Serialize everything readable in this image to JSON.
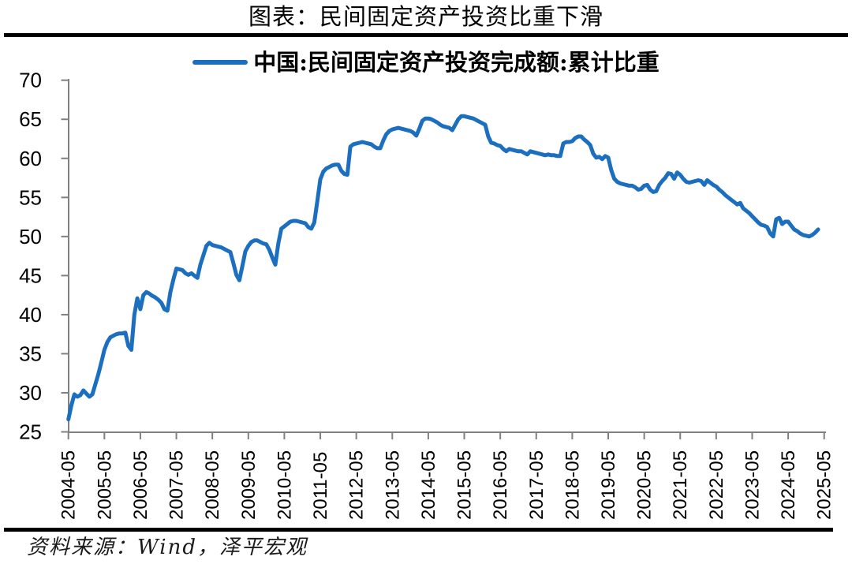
{
  "page": {
    "title": "图表：民间固定资产投资比重下滑",
    "source_note": "资料来源：Wind，泽平宏观"
  },
  "legend": {
    "series_label": "中国:民间固定资产投资完成额:累计比重",
    "line_color": "#1B6FBE"
  },
  "chart_data": {
    "type": "line",
    "title": "图表：民间固定资产投资比重下滑",
    "series_name": "中国:民间固定资产投资完成额:累计比重",
    "unit": "%",
    "frequency": "monthly",
    "x_monthly_start": "2004-05",
    "x_monthly_end": "2025-03",
    "x_tick_labels": [
      "2004-05",
      "2005-05",
      "2006-05",
      "2007-05",
      "2008-05",
      "2009-05",
      "2010-05",
      "2011-05",
      "2012-05",
      "2013-05",
      "2014-05",
      "2015-05",
      "2016-05",
      "2017-05",
      "2018-05",
      "2019-05",
      "2020-05",
      "2021-05",
      "2022-05",
      "2023-05",
      "2024-05",
      "2025-05"
    ],
    "y_ticks": [
      25,
      30,
      35,
      40,
      45,
      50,
      55,
      60,
      65,
      70
    ],
    "ylim": [
      25,
      70
    ],
    "grid": false,
    "legend_position": "top-center",
    "line_color": "#1B6FBE",
    "axis_color": "#808080",
    "values": [
      26.6,
      28.4,
      29.8,
      29.5,
      29.7,
      30.3,
      29.9,
      29.5,
      29.8,
      31.1,
      32.4,
      33.9,
      35.5,
      36.5,
      37.1,
      37.3,
      37.5,
      37.6,
      37.6,
      37.7,
      36.0,
      35.5,
      40.0,
      42.1,
      40.7,
      42.5,
      42.9,
      42.7,
      42.4,
      42.2,
      41.9,
      41.5,
      40.7,
      40.5,
      42.9,
      44.5,
      45.9,
      45.8,
      45.7,
      45.3,
      45.1,
      45.3,
      45.0,
      44.7,
      46.4,
      47.6,
      48.8,
      49.2,
      48.9,
      48.8,
      48.7,
      48.6,
      48.4,
      48.2,
      48.0,
      46.6,
      45.1,
      44.4,
      46.2,
      48.1,
      48.8,
      49.3,
      49.5,
      49.5,
      49.3,
      49.1,
      49.0,
      48.3,
      47.3,
      46.4,
      49.1,
      51.0,
      51.3,
      51.6,
      51.9,
      52.0,
      52.0,
      51.9,
      51.8,
      51.7,
      51.2,
      51.0,
      51.8,
      54.5,
      57.3,
      58.3,
      58.7,
      58.9,
      59.1,
      59.2,
      59.2,
      58.4,
      58.0,
      57.9,
      61.5,
      61.8,
      61.9,
      62.0,
      62.1,
      62.0,
      61.9,
      61.8,
      61.5,
      61.3,
      61.3,
      62.3,
      63.1,
      63.5,
      63.7,
      63.8,
      63.9,
      63.8,
      63.7,
      63.6,
      63.5,
      63.3,
      62.9,
      63.8,
      64.8,
      65.1,
      65.1,
      65.0,
      64.8,
      64.6,
      64.3,
      64.1,
      64.0,
      63.9,
      63.6,
      64.3,
      65.0,
      65.4,
      65.4,
      65.3,
      65.2,
      65.1,
      64.9,
      64.7,
      64.5,
      64.3,
      62.8,
      62.0,
      61.9,
      61.7,
      61.6,
      61.2,
      60.9,
      61.2,
      61.1,
      61.0,
      60.9,
      60.9,
      60.7,
      60.5,
      60.9,
      60.8,
      60.7,
      60.6,
      60.5,
      60.4,
      60.5,
      60.4,
      60.4,
      60.3,
      60.3,
      61.9,
      62.1,
      62.1,
      62.2,
      62.6,
      62.8,
      62.8,
      62.4,
      62.1,
      61.7,
      60.6,
      60.1,
      60.2,
      59.9,
      60.3,
      60.1,
      58.5,
      57.4,
      57.0,
      56.8,
      56.7,
      56.6,
      56.5,
      56.5,
      56.3,
      56.0,
      56.1,
      56.5,
      56.6,
      56.0,
      55.7,
      55.8,
      56.6,
      57.1,
      57.5,
      58.1,
      58.0,
      57.4,
      58.2,
      57.9,
      57.4,
      57.0,
      56.9,
      57.0,
      57.1,
      57.2,
      57.1,
      56.6,
      57.2,
      56.9,
      56.6,
      56.4,
      56.0,
      55.7,
      55.3,
      55.0,
      54.7,
      54.4,
      54.1,
      54.3,
      53.6,
      53.3,
      53.0,
      52.6,
      52.2,
      51.8,
      51.5,
      51.4,
      51.2,
      50.4,
      50.0,
      52.2,
      52.4,
      51.6,
      51.9,
      51.9,
      51.4,
      50.9,
      50.7,
      50.4,
      50.2,
      50.1,
      50.0,
      50.2,
      50.5,
      50.9
    ]
  }
}
